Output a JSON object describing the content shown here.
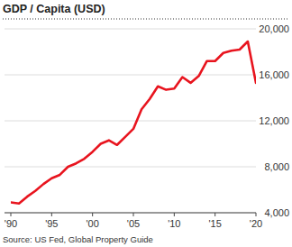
{
  "chart_data": {
    "type": "line",
    "title": "GDP / Capita (USD)",
    "source": "Source: US Fed, Global Property Guide",
    "x": [
      1990,
      1991,
      1992,
      1993,
      1994,
      1995,
      1996,
      1997,
      1998,
      1999,
      2000,
      2001,
      2002,
      2003,
      2004,
      2005,
      2006,
      2007,
      2008,
      2009,
      2010,
      2011,
      2012,
      2013,
      2014,
      2015,
      2016,
      2017,
      2018,
      2019,
      2020
    ],
    "values": [
      4900,
      4800,
      5400,
      5900,
      6500,
      7000,
      7300,
      8000,
      8300,
      8700,
      9300,
      10000,
      10300,
      9900,
      10600,
      11300,
      13000,
      13900,
      15000,
      14700,
      14800,
      15800,
      15300,
      15900,
      17200,
      17200,
      17900,
      18100,
      18200,
      18900,
      15300
    ],
    "color": "#e8141e",
    "xlim": [
      1990,
      2020
    ],
    "xticks": [
      {
        "value": 1990,
        "label": "'90"
      },
      {
        "value": 1995,
        "label": "'95"
      },
      {
        "value": 2000,
        "label": "'00"
      },
      {
        "value": 2005,
        "label": "'05"
      },
      {
        "value": 2010,
        "label": "'10"
      },
      {
        "value": 2015,
        "label": "'15"
      },
      {
        "value": 2020,
        "label": "'20"
      }
    ],
    "ylim": [
      4000,
      20000
    ],
    "yticks": [
      {
        "value": 4000,
        "label": "4,000"
      },
      {
        "value": 8000,
        "label": "8,000"
      },
      {
        "value": 12000,
        "label": "12,000"
      },
      {
        "value": 16000,
        "label": "16,000"
      },
      {
        "value": 20000,
        "label": "20,000"
      }
    ],
    "grid": true
  }
}
